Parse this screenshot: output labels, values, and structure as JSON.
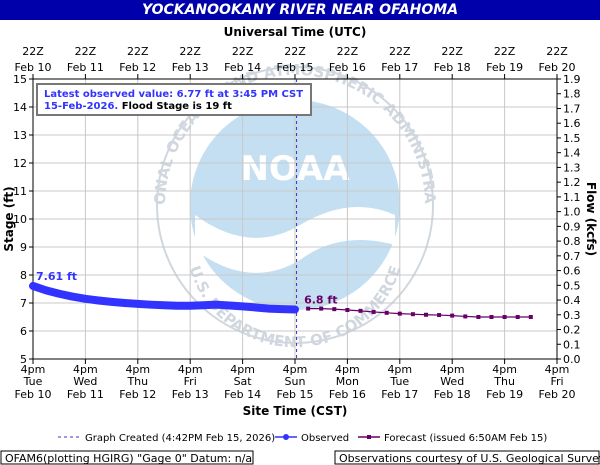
{
  "title": "YOCKANOOKANY RIVER NEAR OFAHOMA",
  "top_axis_title": "Universal Time (UTC)",
  "bottom_axis_title": "Site Time (CST)",
  "left_axis_title": "Stage (ft)",
  "right_axis_title": "Flow (kcfs)",
  "info_box": {
    "line1": "Latest observed value: 6.77 ft at 3:45 PM CST",
    "line2_blue": "15-Feb-2026.",
    "line2_black": " Flood Stage is 19 ft"
  },
  "watermark": {
    "logo_text": "NOAA",
    "arc_top": "NATIONAL OCEANIC AND ATMOSPHERIC ADMINISTRATION",
    "arc_bottom": "U.S. DEPARTMENT OF COMMERCE"
  },
  "footer": {
    "left": "OFAM6(plotting HGIRG) \"Gage 0\" Datum: n/a",
    "right": "Observations courtesy of U.S. Geological Survey"
  },
  "colors": {
    "title_bg": "#0000aa",
    "observed": "#3333ff",
    "forecast": "#660066",
    "created_line": "#3333cc",
    "plot_grid": "#c8c8c8"
  },
  "chart_data": {
    "type": "line",
    "x_unit": "days from Feb 10 4pm CST",
    "xlim": [
      0,
      10
    ],
    "ylim": [
      5,
      15
    ],
    "y_ticks": [
      5,
      6,
      7,
      8,
      9,
      10,
      11,
      12,
      13,
      14,
      15
    ],
    "y2lim": [
      0,
      1.9
    ],
    "y2_ticks": [
      "0.0",
      "0.1",
      "0.2",
      "0.3",
      "0.4",
      "0.5",
      "0.6",
      "0.7",
      "0.8",
      "0.9",
      "1.0",
      "1.1",
      "1.2",
      "1.3",
      "1.4",
      "1.5",
      "1.6",
      "1.7",
      "1.8",
      "1.9"
    ],
    "top_ticks": [
      [
        "22Z",
        "Feb 10"
      ],
      [
        "22Z",
        "Feb 11"
      ],
      [
        "22Z",
        "Feb 12"
      ],
      [
        "22Z",
        "Feb 13"
      ],
      [
        "22Z",
        "Feb 14"
      ],
      [
        "22Z",
        "Feb 15"
      ],
      [
        "22Z",
        "Feb 16"
      ],
      [
        "22Z",
        "Feb 17"
      ],
      [
        "22Z",
        "Feb 18"
      ],
      [
        "22Z",
        "Feb 19"
      ],
      [
        "22Z",
        "Feb 20"
      ]
    ],
    "bottom_ticks": [
      [
        "4pm",
        "Tue",
        "Feb 10"
      ],
      [
        "4pm",
        "Wed",
        "Feb 11"
      ],
      [
        "4pm",
        "Thu",
        "Feb 12"
      ],
      [
        "4pm",
        "Fri",
        "Feb 13"
      ],
      [
        "4pm",
        "Sat",
        "Feb 14"
      ],
      [
        "4pm",
        "Sun",
        "Feb 15"
      ],
      [
        "4pm",
        "Mon",
        "Feb 16"
      ],
      [
        "4pm",
        "Tue",
        "Feb 17"
      ],
      [
        "4pm",
        "Wed",
        "Feb 18"
      ],
      [
        "4pm",
        "Thu",
        "Feb 19"
      ],
      [
        "4pm",
        "Fri",
        "Feb 20"
      ]
    ],
    "created_x": 5.03,
    "observed_label": "7.61 ft",
    "forecast_label": "6.8 ft",
    "series": [
      {
        "name": "Observed",
        "x": [
          0,
          0.25,
          0.5,
          0.75,
          1,
          1.25,
          1.5,
          1.75,
          2,
          2.25,
          2.5,
          2.75,
          3,
          3.25,
          3.5,
          3.75,
          4,
          4.25,
          4.5,
          4.75,
          5
        ],
        "y": [
          7.61,
          7.45,
          7.33,
          7.23,
          7.15,
          7.09,
          7.04,
          7.0,
          6.97,
          6.94,
          6.92,
          6.9,
          6.9,
          6.92,
          6.94,
          6.91,
          6.88,
          6.84,
          6.8,
          6.78,
          6.77
        ]
      },
      {
        "name": "Forecast (issued 6:50AM Feb 15)",
        "x": [
          5.25,
          5.5,
          5.75,
          6,
          6.25,
          6.5,
          6.75,
          7,
          7.25,
          7.5,
          7.75,
          8,
          8.25,
          8.5,
          8.75,
          9,
          9.25,
          9.5
        ],
        "y": [
          6.8,
          6.8,
          6.78,
          6.75,
          6.72,
          6.68,
          6.65,
          6.62,
          6.6,
          6.58,
          6.57,
          6.55,
          6.52,
          6.5,
          6.5,
          6.5,
          6.5,
          6.5
        ]
      }
    ],
    "legend": [
      {
        "label": "Graph Created (4:42PM Feb 15, 2026)",
        "style": "dash"
      },
      {
        "label": "Observed",
        "style": "observed"
      },
      {
        "label": "Forecast (issued 6:50AM Feb 15)",
        "style": "forecast"
      }
    ]
  }
}
